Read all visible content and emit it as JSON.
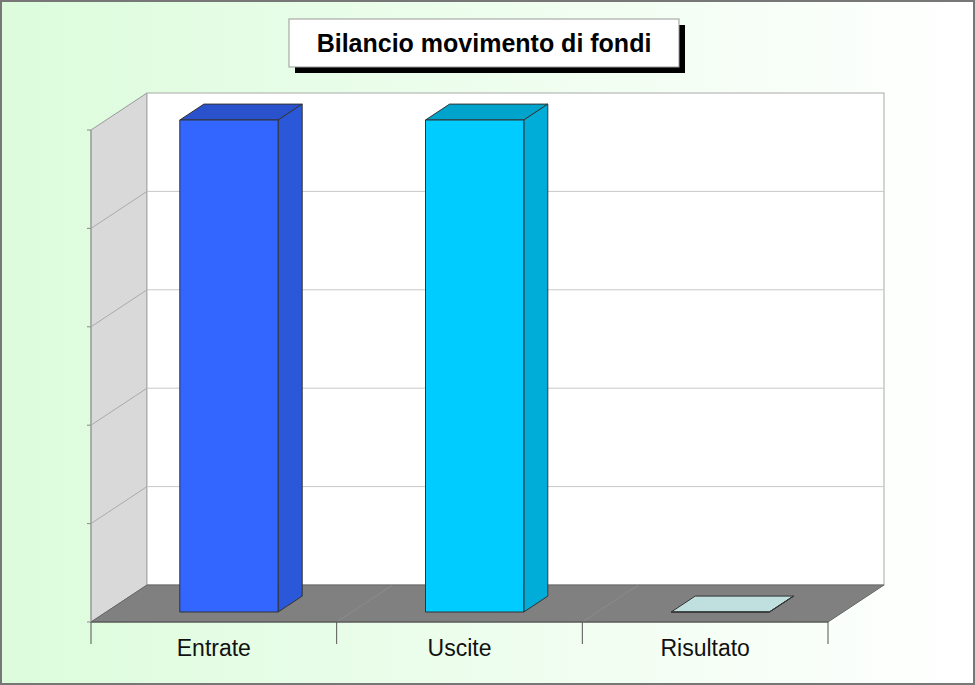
{
  "chart_data": {
    "type": "bar",
    "title": "Bilancio movimento di fondi",
    "categories": [
      "Entrate",
      "Uscite",
      "Risultato"
    ],
    "values": [
      5,
      5,
      0
    ],
    "colors": [
      "#3366ff",
      "#00ccff",
      "#c0e0e0"
    ],
    "ylim": [
      0,
      5
    ],
    "yticks": [
      0,
      1,
      2,
      3,
      4,
      5
    ],
    "grid": true,
    "tick_labels": false
  }
}
